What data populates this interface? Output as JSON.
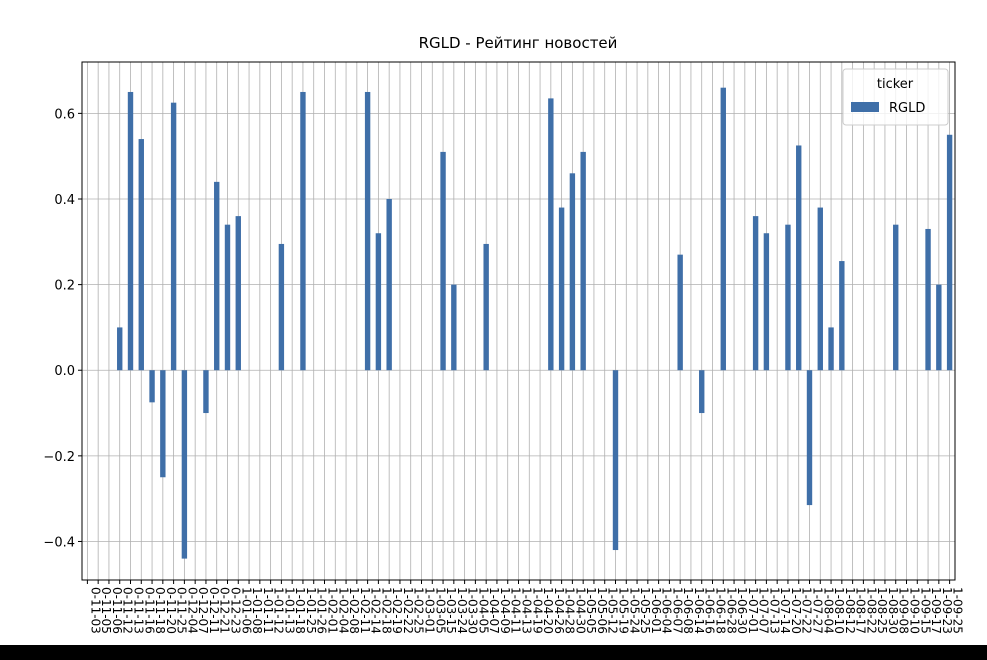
{
  "chart_data": {
    "type": "bar",
    "title": "RGLD - Рейтинг новостей",
    "categories": [
      "0-11-03",
      "0-11-05",
      "0-11-06",
      "0-11-12",
      "0-11-13",
      "0-11-16",
      "0-11-18",
      "0-11-20",
      "0-11-25",
      "0-12-04",
      "0-12-07",
      "0-12-11",
      "0-12-21",
      "0-12-23",
      "1-01-06",
      "1-01-08",
      "1-01-11",
      "1-01-12",
      "1-01-13",
      "1-01-18",
      "1-01-25",
      "1-01-26",
      "1-02-01",
      "1-02-04",
      "1-02-08",
      "1-02-11",
      "1-02-14",
      "1-02-18",
      "1-02-19",
      "1-02-22",
      "1-02-25",
      "1-03-01",
      "1-03-05",
      "1-03-15",
      "1-03-24",
      "1-03-30",
      "1-04-05",
      "1-04-07",
      "1-04-09",
      "1-04-11",
      "1-04-13",
      "1-04-19",
      "1-04-20",
      "1-04-26",
      "1-04-28",
      "1-04-30",
      "1-05-05",
      "1-05-06",
      "1-05-12",
      "1-05-19",
      "1-05-24",
      "1-05-25",
      "1-06-01",
      "1-06-04",
      "1-06-07",
      "1-06-08",
      "1-06-14",
      "1-06-16",
      "1-06-18",
      "1-06-28",
      "1-06-30",
      "1-07-01",
      "1-07-07",
      "1-07-13",
      "1-07-14",
      "1-07-20",
      "1-07-22",
      "1-07-27",
      "1-08-04",
      "1-08-10",
      "1-08-12",
      "1-08-17",
      "1-08-22",
      "1-08-25",
      "1-08-30",
      "1-09-08",
      "1-09-10",
      "1-09-15",
      "1-09-17",
      "1-09-23",
      "1-09-25"
    ],
    "series": [
      {
        "name": "RGLD",
        "color": "#3f6fa8",
        "values": [
          null,
          null,
          null,
          0.1,
          0.65,
          0.54,
          -0.075,
          -0.25,
          0.625,
          -0.44,
          null,
          -0.1,
          0.44,
          0.34,
          0.36,
          null,
          null,
          null,
          0.295,
          null,
          0.65,
          null,
          null,
          null,
          null,
          null,
          0.65,
          0.32,
          0.4,
          null,
          null,
          null,
          null,
          0.51,
          0.2,
          null,
          null,
          0.295,
          null,
          null,
          null,
          null,
          null,
          0.635,
          0.38,
          0.46,
          0.51,
          null,
          null,
          -0.42,
          null,
          null,
          null,
          null,
          null,
          0.27,
          null,
          -0.1,
          null,
          0.66,
          null,
          null,
          0.36,
          0.32,
          null,
          0.34,
          0.525,
          -0.315,
          0.38,
          0.1,
          0.255,
          null,
          null,
          null,
          null,
          0.34,
          null,
          null,
          0.33,
          0.2,
          0.55
        ]
      }
    ],
    "ylim": [
      -0.49,
      0.72
    ],
    "yticks": [
      {
        "value": -0.4,
        "label": "−0.4"
      },
      {
        "value": -0.2,
        "label": "−0.2"
      },
      {
        "value": 0,
        "label": "0.0"
      },
      0.2,
      0.4,
      0.6
    ],
    "grid": true,
    "legend_title": "ticker",
    "legend": "upper right"
  }
}
